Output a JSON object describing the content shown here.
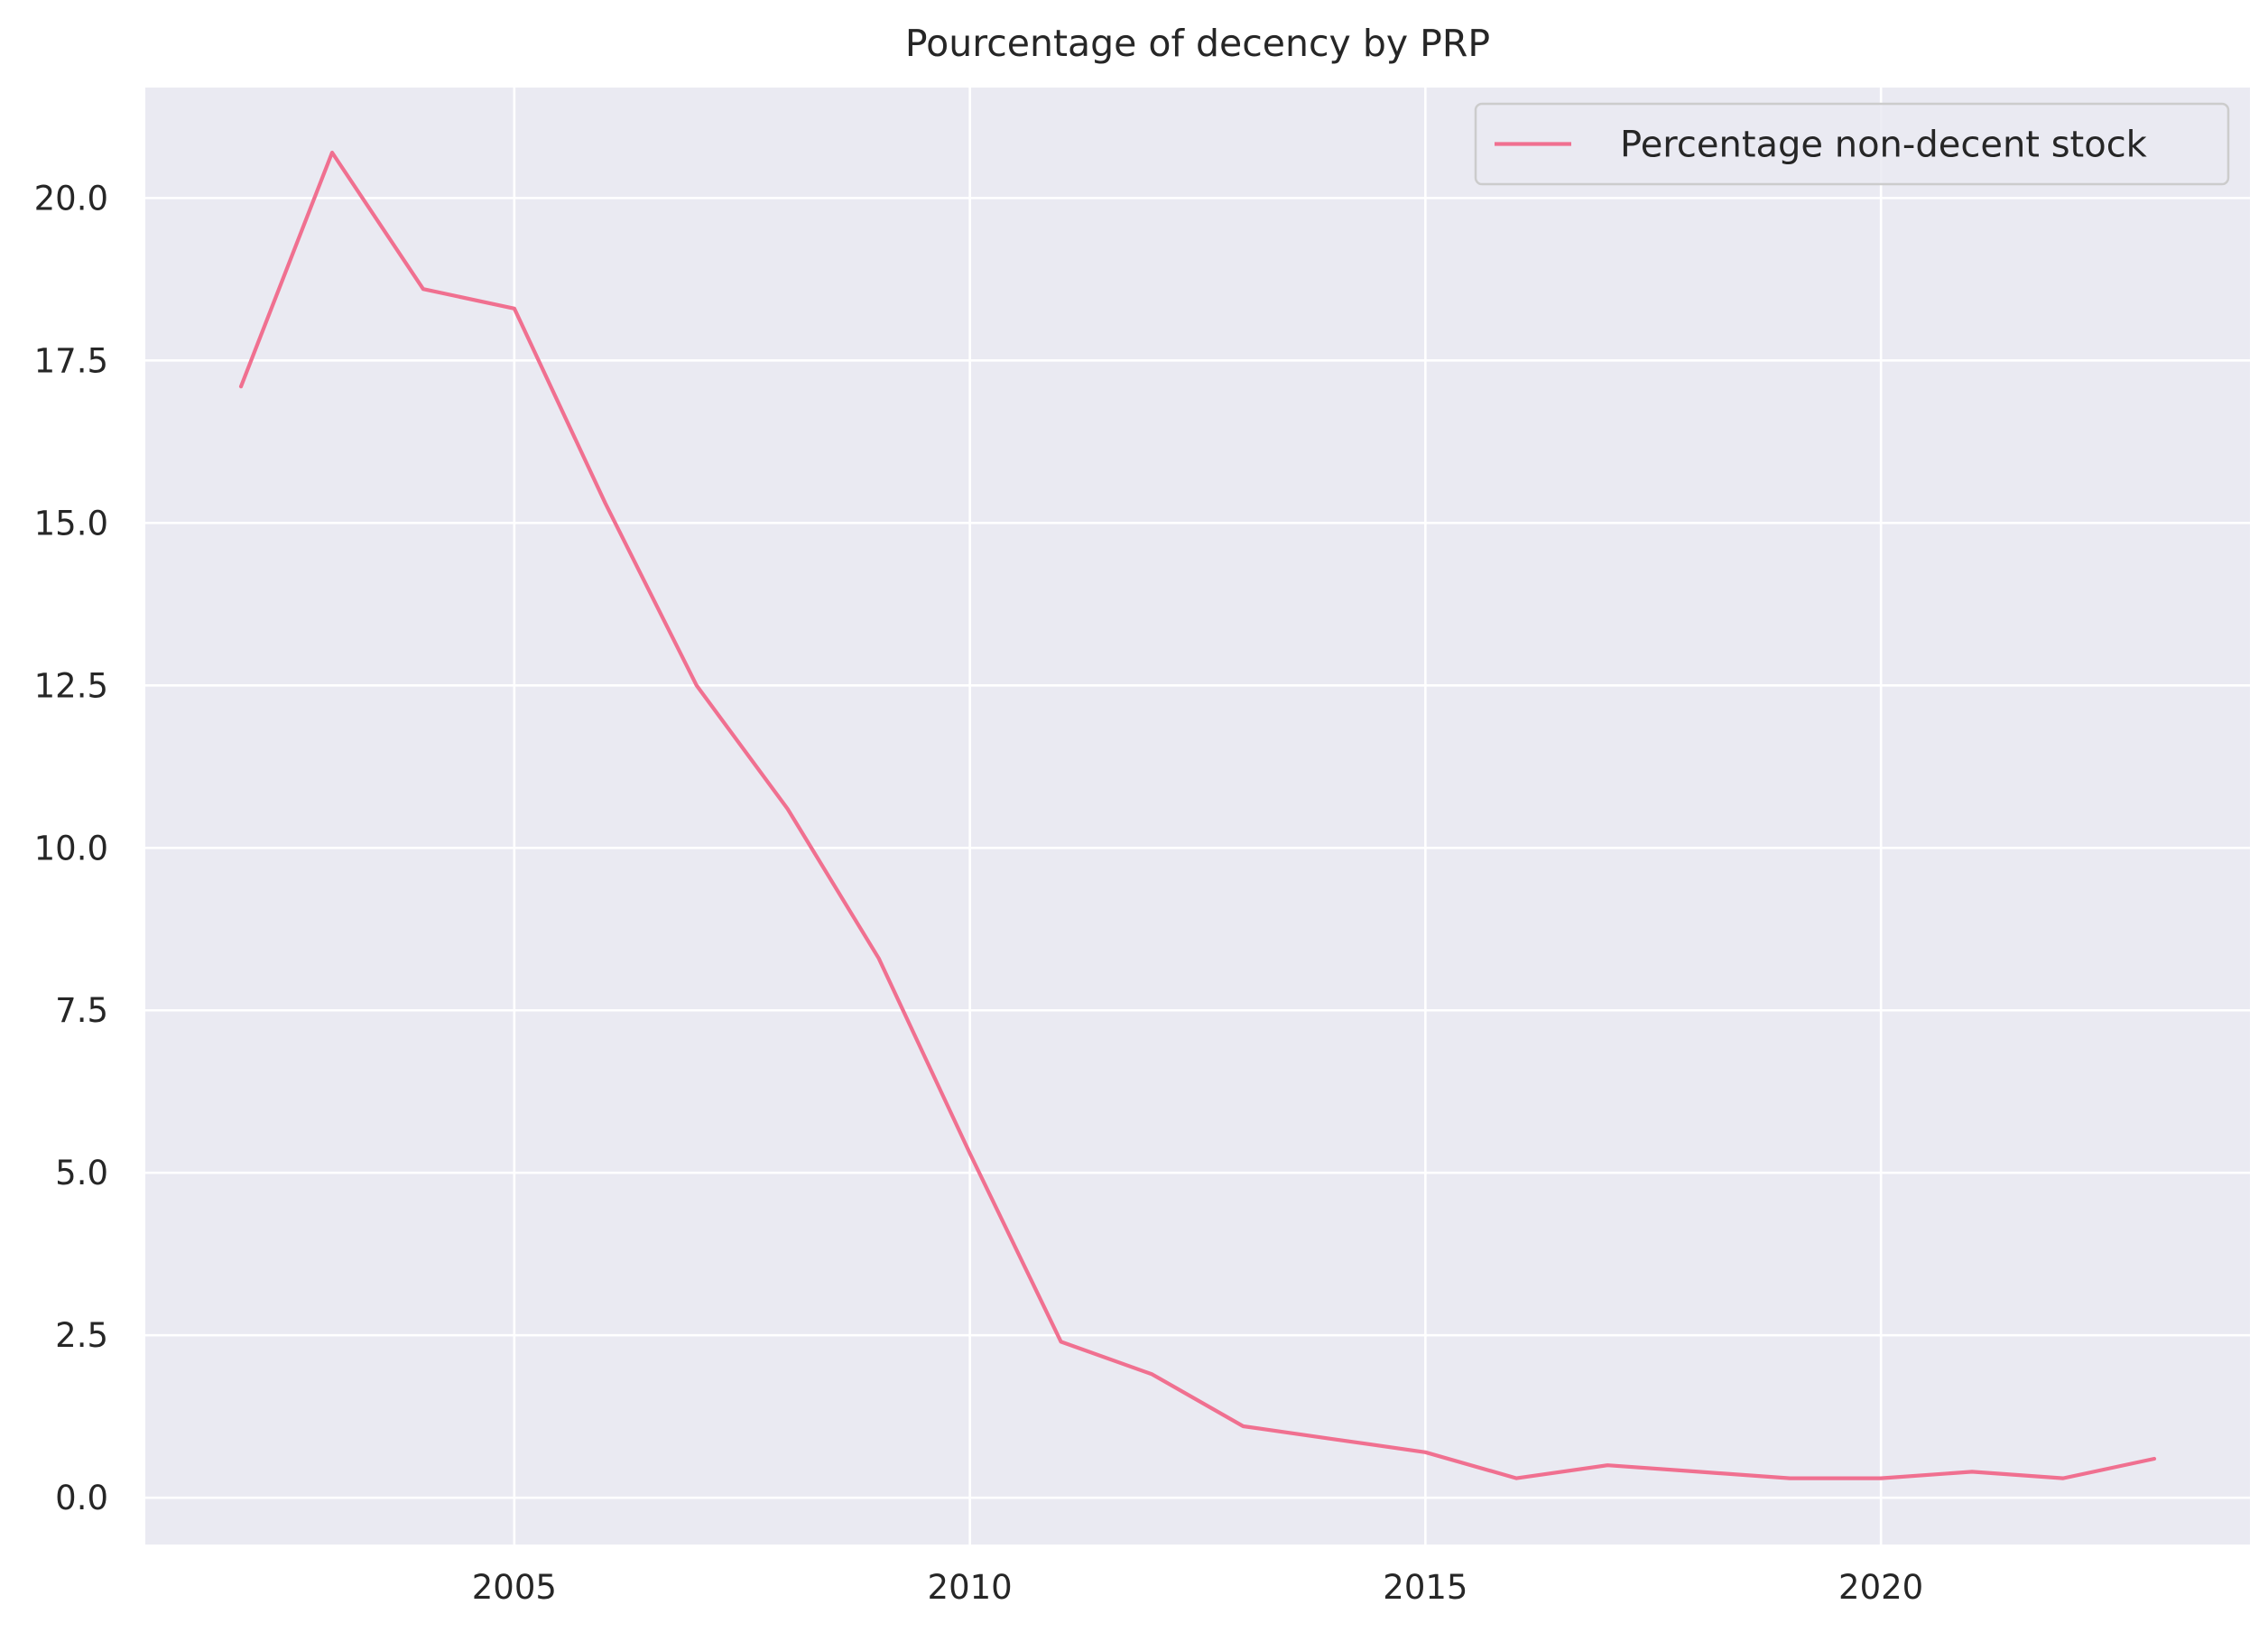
{
  "chart_data": {
    "type": "line",
    "title": "Pourcentage of decency by PRP",
    "xlabel": "",
    "ylabel": "",
    "xlim": [
      2000.95,
      2024.05
    ],
    "ylim": [
      -0.72,
      21.7
    ],
    "x_ticks": [
      2005,
      2010,
      2015,
      2020
    ],
    "x_tick_labels": [
      "2005",
      "2010",
      "2015",
      "2020"
    ],
    "y_ticks": [
      0,
      2.5,
      5,
      7.5,
      10,
      12.5,
      15,
      17.5,
      20
    ],
    "y_tick_labels": [
      "0.0",
      "2.5",
      "5.0",
      "7.5",
      "10.0",
      "12.5",
      "15.0",
      "17.5",
      "20.0"
    ],
    "grid": true,
    "legend_position": "top-right",
    "series": [
      {
        "name": "Percentage non-decent stock",
        "color": "#f07090",
        "x": [
          2002,
          2003,
          2004,
          2005,
          2006,
          2007,
          2008,
          2009,
          2010,
          2011,
          2012,
          2013,
          2014,
          2015,
          2016,
          2017,
          2018,
          2019,
          2020,
          2021,
          2022,
          2023
        ],
        "y": [
          17.1,
          20.7,
          18.6,
          18.3,
          15.3,
          12.5,
          10.6,
          8.3,
          5.3,
          2.4,
          1.9,
          1.1,
          0.9,
          0.7,
          0.3,
          0.5,
          0.4,
          0.3,
          0.3,
          0.4,
          0.3,
          0.6
        ]
      }
    ]
  },
  "style": {
    "plot_background": "#eaeaf2",
    "grid_color": "#ffffff",
    "text_color": "#262626"
  }
}
